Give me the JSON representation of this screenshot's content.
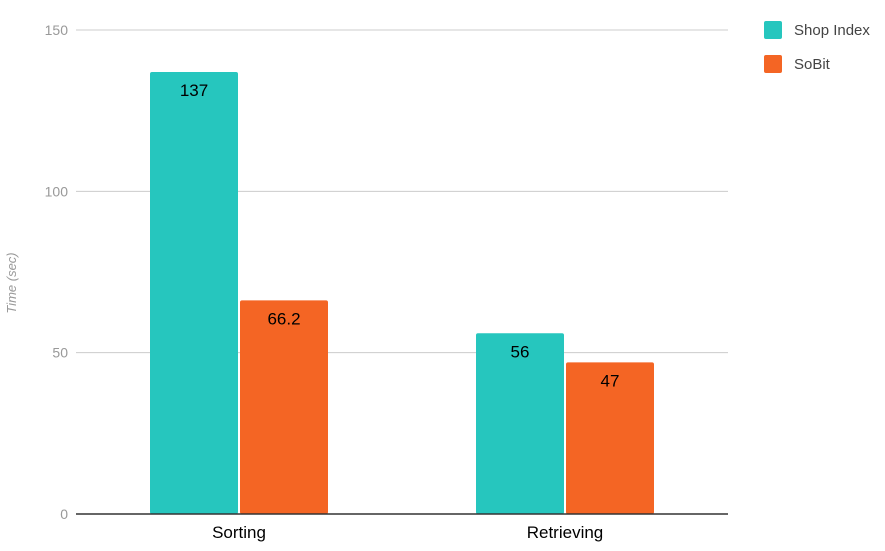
{
  "chart_data": {
    "type": "bar",
    "title": "",
    "xlabel": "",
    "ylabel": "Time (sec)",
    "categories": [
      "Sorting",
      "Retrieving"
    ],
    "series": [
      {
        "name": "Shop Index",
        "color": "#26c6be",
        "values": [
          137,
          56
        ],
        "labels": [
          "137",
          "56"
        ]
      },
      {
        "name": "SoBit",
        "color": "#f46524",
        "values": [
          66.2,
          47
        ],
        "labels": [
          "66.2",
          "47"
        ]
      }
    ],
    "ylim": [
      0,
      150
    ],
    "yticks": [
      0,
      50,
      100,
      150
    ],
    "ytick_labels": [
      "0",
      "50",
      "100",
      "150"
    ],
    "grid": true,
    "legend": "top-right"
  }
}
